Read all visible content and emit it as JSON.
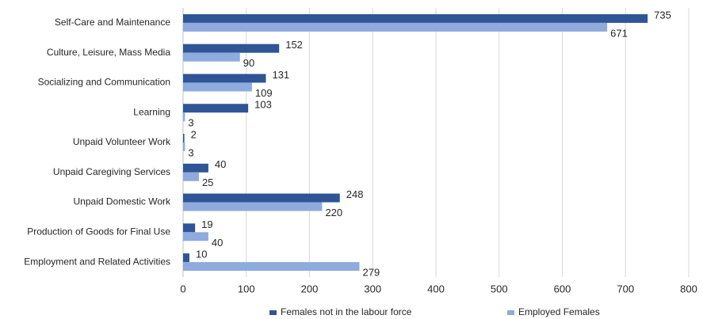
{
  "chart_data": {
    "type": "bar",
    "orientation": "horizontal",
    "categories": [
      "Self-Care and Maintenance",
      "Culture, Leisure, Mass Media",
      "Socializing and Communication",
      "Learning",
      "Unpaid Volunteer Work",
      "Unpaid Caregiving Services",
      "Unpaid Domestic Work",
      "Production of Goods for Final Use",
      "Employment and Related Activities"
    ],
    "series": [
      {
        "name": "Females not in the labour force",
        "color": "#2f5597",
        "values": [
          735,
          152,
          131,
          103,
          2,
          40,
          248,
          19,
          10
        ]
      },
      {
        "name": "Employed Females",
        "color": "#8faadc",
        "values": [
          671,
          90,
          109,
          3,
          3,
          25,
          220,
          40,
          279
        ]
      }
    ],
    "xlim": [
      0,
      800
    ],
    "xticks": [
      0,
      100,
      200,
      300,
      400,
      500,
      600,
      700,
      800
    ],
    "grid": true,
    "legend": "bottom"
  }
}
